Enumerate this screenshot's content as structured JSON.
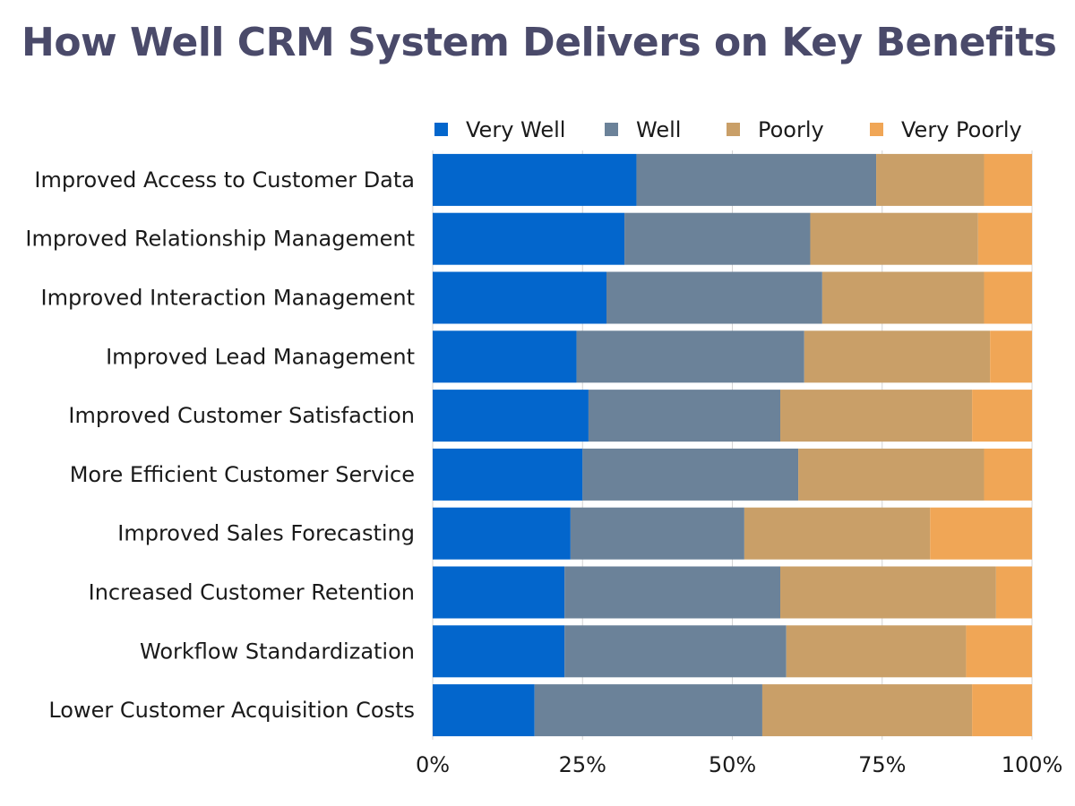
{
  "chart_data": {
    "type": "bar",
    "orientation": "horizontal",
    "stacked": true,
    "normalized": true,
    "title": "How Well CRM System Delivers on Key Benefits",
    "categories": [
      "Improved Access to Customer Data",
      "Improved Relationship Management",
      "Improved Interaction Management",
      "Improved Lead Management",
      "Improved Customer Satisfaction",
      "More Efficient Customer Service",
      "Improved Sales Forecasting",
      "Increased Customer Retention",
      "Workflow Standardization",
      "Lower Customer Acquisition Costs"
    ],
    "series": [
      {
        "name": "Very Well",
        "color": "#0366cc",
        "values": [
          34,
          32,
          29,
          24,
          26,
          25,
          23,
          22,
          22,
          17
        ]
      },
      {
        "name": "Well",
        "color": "#6b8299",
        "values": [
          40,
          31,
          36,
          38,
          32,
          36,
          29,
          36,
          37,
          38
        ]
      },
      {
        "name": "Poorly",
        "color": "#c99f68",
        "values": [
          18,
          28,
          27,
          31,
          32,
          31,
          31,
          36,
          30,
          35
        ]
      },
      {
        "name": "Very Poorly",
        "color": "#f0a656",
        "values": [
          8,
          9,
          8,
          7,
          10,
          8,
          17,
          6,
          11,
          10
        ]
      }
    ],
    "xlim": [
      0,
      100
    ],
    "xticks": [
      "0%",
      "25%",
      "50%",
      "75%",
      "100%"
    ],
    "grid": true,
    "legend_position": "top"
  }
}
